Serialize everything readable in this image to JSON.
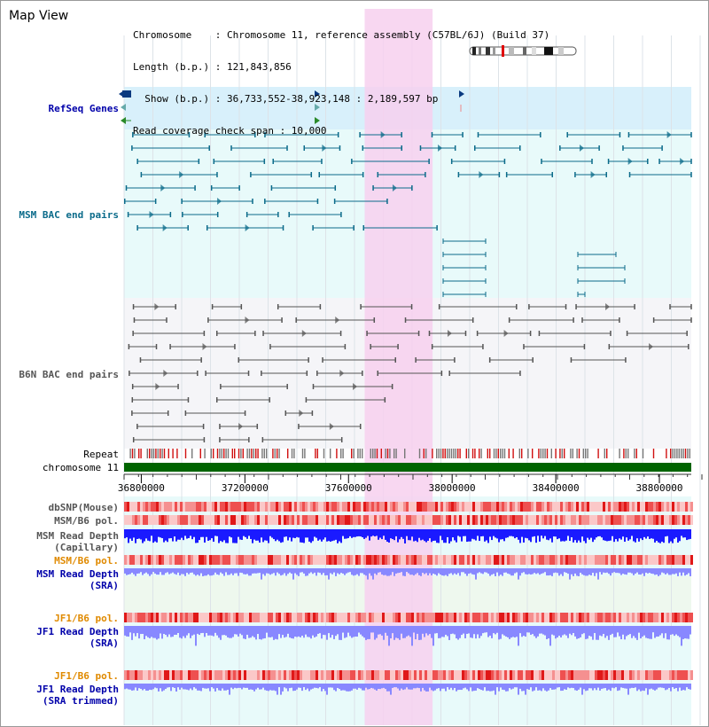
{
  "view_title": "Map View",
  "info": {
    "chromosome_line": "Chromosome    : Chromosome 11, reference assembly (C57BL/6J) (Build 37)",
    "length_line": "Length (b.p.) : 121,843,856",
    "show_line": "  Show (b.p.) : 36,733,552-38,923,148 : 2,189,597 bp",
    "coverage_line": "Read coverage check span : 10,000"
  },
  "tracks": {
    "refseq_genes": "RefSeq Genes",
    "msm_bac": "MSM BAC end pairs",
    "b6n_bac": "B6N BAC end pairs",
    "repeat": "Repeat",
    "chromosome": "chromosome 11",
    "dbsnp": "dbSNP(Mouse)",
    "msm_b6_pol_1": "MSM/B6 pol.",
    "msm_read_depth_cap_1": "MSM Read Depth",
    "msm_read_depth_cap_2": "(Capillary)",
    "msm_b6_pol_2": "MSM/B6 pol.",
    "msm_read_depth_sra_1": "MSM Read Depth",
    "msm_read_depth_sra_2": "(SRA)",
    "jf1_b6_pol_1": "JF1/B6 pol.",
    "jf1_read_depth_sra_1": "JF1 Read Depth",
    "jf1_read_depth_sra_2": "(SRA)",
    "jf1_b6_pol_2": "JF1/B6 pol.",
    "jf1_read_depth_trim_1": "JF1 Read Depth",
    "jf1_read_depth_trim_2": "(SRA trimmed)"
  },
  "axis": {
    "ticks": [
      "36800000",
      "37200000",
      "37600000",
      "38000000",
      "38400000",
      "38800000"
    ],
    "tick_values": [
      36800000,
      37200000,
      37600000,
      38000000,
      38400000,
      38800000
    ]
  },
  "view_range": {
    "start": 36733552,
    "end": 38923148
  },
  "highlight_range": {
    "start": 37700000,
    "end": 37880000
  },
  "colors": {
    "refseq_bg": "#d8f0fb",
    "msm_bg": "#e8fafa",
    "b6n_bg": "#f5f5f8",
    "highlight": "#f7d0ee",
    "chromosome_bar": "#006400",
    "msm_line": "#0b6b8a",
    "b6n_line": "#555555",
    "depth_capillary": "#1a1aff",
    "depth_sra": "#8888ff",
    "pol_red": "#e04040"
  },
  "ideogram": {
    "label": "chromosome 11 ideogram"
  }
}
